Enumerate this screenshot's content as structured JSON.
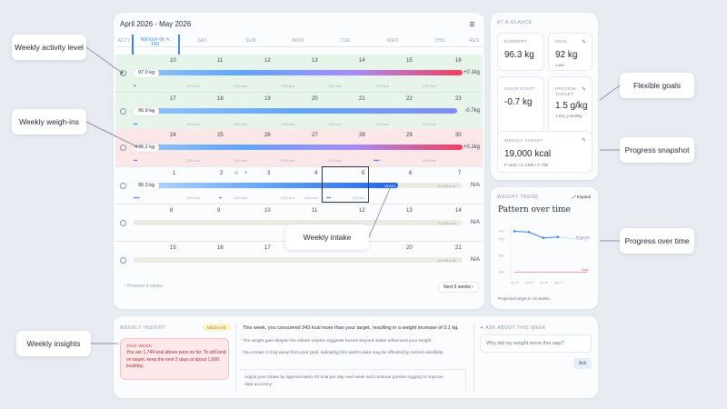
{
  "calendar": {
    "title": "April 2026 - May 2026",
    "col_acti": "ACTI",
    "col_weigh": "WEIGH-IN",
    "col_fri": "FRI",
    "days": [
      "SAT",
      "SUN",
      "MON",
      "TUE",
      "WED",
      "THU",
      "RES"
    ],
    "weeks": [
      {
        "nums": [
          "10",
          "11",
          "12",
          "13",
          "14",
          "15",
          "16"
        ],
        "weight": "97.0 kg",
        "delta": "+0.1kg"
      },
      {
        "nums": [
          "17",
          "18",
          "19",
          "20",
          "21",
          "22",
          "23"
        ],
        "weight": "96.9 kg",
        "delta": "-0.7kg"
      },
      {
        "nums": [
          "24",
          "25",
          "26",
          "27",
          "28",
          "29",
          "30"
        ],
        "weight": "96.2 kg",
        "delta": "+0.1kg"
      },
      {
        "nums": [
          "1",
          "2",
          "3",
          "4",
          "5",
          "6",
          "7"
        ],
        "weight": "96.3 kg",
        "delta": "N/A",
        "target": "19,000 kcal",
        "intake": "15,621"
      },
      {
        "nums": [
          "8",
          "9",
          "10",
          "11",
          "12",
          "13",
          "14"
        ],
        "delta": "N/A",
        "target": "19,000 kcal"
      },
      {
        "nums": [
          "15",
          "16",
          "17",
          "18",
          "19",
          "20",
          "21"
        ],
        "delta": "N/A",
        "target": "19,000 kcal"
      }
    ],
    "kcal_label": "2000 kcal",
    "prev": "Previous 6 weeks",
    "next": "Next 6 weeks"
  },
  "glance": {
    "header": "AT A GLANCE",
    "current_label": "CURRENT",
    "current_value": "96.3 kg",
    "goal_label": "GOAL",
    "goal_value": "92 kg",
    "goal_sub": "Lose",
    "since_label": "SINCE START",
    "since_value": "-0.7 kg",
    "protein_label": "PROTEIN TARGET",
    "protein_value": "1.5 g/kg",
    "protein_sub": "1.011 g weekly",
    "weekly_label": "WEEKLY TARGET",
    "weekly_value": "19,000 kcal",
    "weekly_sub": "P 1011 • C 1300 • F 705"
  },
  "trend": {
    "label": "WEIGHT TREND",
    "expand": "Expand",
    "title": "Pattern over time",
    "footer": "Projected target in 19 weeks.",
    "y_ticks": [
      "97.0",
      "96.0",
      "94.0",
      "92.0"
    ],
    "x_ticks": [
      "Apr 10",
      "Apr 24",
      "Apr 30",
      "May 7"
    ],
    "projected": "Projected",
    "goal": "Goal"
  },
  "chart_data": {
    "type": "line",
    "x": [
      "Apr 10",
      "Apr 17",
      "Apr 24",
      "May 1"
    ],
    "series": [
      {
        "values": [
          97.0,
          96.9,
          96.2,
          96.3
        ]
      }
    ],
    "projected_label": "Projected",
    "goal_value": 92
  },
  "insight": {
    "header": "WEEKLY INSIGHT",
    "badge": "MEDIUM",
    "this_week_label": "THIS WEEK",
    "this_week_text": "You are 1,744 kcal above pace so far. To still land on target, keep the next 2 days at about 1,900 kcal/day.",
    "p1": "This week, you consumed 243 kcal more than your target, resulting in a weight increase of 0.1 kg.",
    "p2": "The weight gain despite the calorie surplus suggests factors beyond intake influenced your weight.",
    "p3": "You remain 4.3 kg away from your goal, indicating this week's data may be affected by normal variability.",
    "p4": "Adjust your intake by approximately 40 kcal per day next week and continue precise logging to improve data accuracy."
  },
  "ask": {
    "header": "ASK ABOUT THIS WEEK",
    "placeholder": "Why did my weight move this way?",
    "button": "Ask"
  },
  "callouts": {
    "activity": "Weekly activity level",
    "weighins": "Weekly weigh-ins",
    "intake": "Weekly intake",
    "insights": "Weekly insights",
    "goals": "Flexible goals",
    "snapshot": "Progress snapshot",
    "overtime": "Progress over time"
  }
}
